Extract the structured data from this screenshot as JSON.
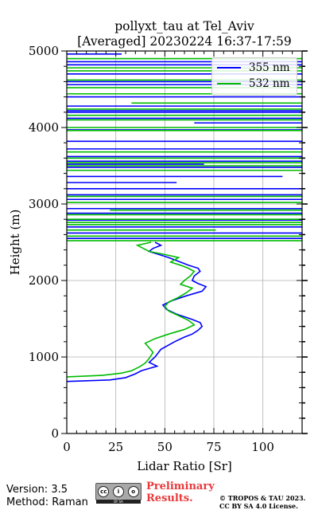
{
  "header": {
    "title_line1": "pollyxt_tau at Tel_Aviv",
    "title_line2": "[Averaged] 20230224 16:37-17:59"
  },
  "footer": {
    "version": "Version: 3.5",
    "method": "Method: Raman",
    "preliminary": "Preliminary\nResults.",
    "license": "© TROPOS & TAU 2023.\nCC BY SA 4.0 License.",
    "cc_badge": {
      "icon": "cc-by-sa-icon",
      "color": "#a9a9a9"
    }
  },
  "colors": {
    "s355": "#0000ff",
    "s532": "#00bb00",
    "prelim": "#e8393b"
  },
  "chart_data": {
    "type": "line",
    "title": "pollyxt_tau at Tel_Aviv\n[Averaged] 20230224 16:37-17:59",
    "xlabel": "Lidar Ratio [Sr]",
    "ylabel": "Height (m)",
    "xlim": [
      0,
      120
    ],
    "ylim": [
      0,
      5000
    ],
    "xticks": [
      0,
      25,
      50,
      75,
      100
    ],
    "yticks": [
      0,
      1000,
      2000,
      3000,
      4000,
      5000
    ],
    "grid": true,
    "legend_position": "top-right",
    "series": [
      {
        "name": "355 nm",
        "color": "#0000ff",
        "profile": [
          [
            680,
            0
          ],
          [
            700,
            22
          ],
          [
            730,
            30
          ],
          [
            780,
            35
          ],
          [
            820,
            38
          ],
          [
            850,
            42
          ],
          [
            880,
            46
          ],
          [
            930,
            42
          ],
          [
            1000,
            45
          ],
          [
            1100,
            48
          ],
          [
            1200,
            55
          ],
          [
            1260,
            60
          ],
          [
            1300,
            64
          ],
          [
            1350,
            67
          ],
          [
            1400,
            69
          ],
          [
            1450,
            68
          ],
          [
            1500,
            63
          ],
          [
            1560,
            56
          ],
          [
            1620,
            51
          ],
          [
            1680,
            49
          ],
          [
            1740,
            54
          ],
          [
            1800,
            61
          ],
          [
            1860,
            69
          ],
          [
            1920,
            71
          ],
          [
            1960,
            67
          ],
          [
            2000,
            64
          ],
          [
            2060,
            65
          ],
          [
            2120,
            68
          ],
          [
            2160,
            67
          ],
          [
            2200,
            62
          ],
          [
            2260,
            56
          ],
          [
            2300,
            52
          ],
          [
            2340,
            47
          ],
          [
            2380,
            42
          ],
          [
            2420,
            44
          ],
          [
            2460,
            48
          ],
          [
            2500,
            45
          ]
        ],
        "spikes": [
          [
            2550,
            0,
            120
          ],
          [
            2620,
            0,
            120
          ],
          [
            2700,
            0,
            120
          ],
          [
            2790,
            0,
            120
          ],
          [
            2880,
            0,
            120
          ],
          [
            2940,
            0,
            120
          ],
          [
            3060,
            0,
            120
          ],
          [
            3120,
            0,
            120
          ],
          [
            3200,
            0,
            120
          ],
          [
            3280,
            0,
            56
          ],
          [
            3360,
            0,
            110
          ],
          [
            3480,
            0,
            120
          ],
          [
            3520,
            0,
            70
          ],
          [
            3560,
            0,
            120
          ],
          [
            3620,
            0,
            120
          ],
          [
            3720,
            0,
            120
          ],
          [
            3820,
            0,
            120
          ],
          [
            3970,
            0,
            120
          ],
          [
            4060,
            65,
            120
          ],
          [
            4120,
            0,
            120
          ],
          [
            4200,
            0,
            120
          ],
          [
            4220,
            0,
            120
          ],
          [
            4280,
            0,
            120
          ],
          [
            4400,
            0,
            120
          ],
          [
            4560,
            0,
            120
          ],
          [
            4600,
            0,
            120
          ],
          [
            4700,
            0,
            120
          ],
          [
            4820,
            0,
            120
          ],
          [
            4860,
            0,
            120
          ],
          [
            4960,
            0,
            28
          ]
        ]
      },
      {
        "name": "532 nm",
        "color": "#00bb00",
        "profile": [
          [
            740,
            0
          ],
          [
            760,
            18
          ],
          [
            790,
            28
          ],
          [
            820,
            33
          ],
          [
            870,
            37
          ],
          [
            920,
            40
          ],
          [
            980,
            42
          ],
          [
            1060,
            44
          ],
          [
            1120,
            42
          ],
          [
            1180,
            40
          ],
          [
            1240,
            45
          ],
          [
            1300,
            52
          ],
          [
            1360,
            60
          ],
          [
            1420,
            65
          ],
          [
            1480,
            62
          ],
          [
            1540,
            57
          ],
          [
            1600,
            52
          ],
          [
            1660,
            50
          ],
          [
            1720,
            52
          ],
          [
            1780,
            57
          ],
          [
            1840,
            61
          ],
          [
            1900,
            64
          ],
          [
            1950,
            58
          ],
          [
            2000,
            60
          ],
          [
            2060,
            63
          ],
          [
            2120,
            65
          ],
          [
            2160,
            62
          ],
          [
            2200,
            58
          ],
          [
            2240,
            53
          ],
          [
            2300,
            57
          ],
          [
            2340,
            50
          ],
          [
            2380,
            42
          ],
          [
            2420,
            39
          ],
          [
            2460,
            36
          ],
          [
            2500,
            43
          ]
        ],
        "spikes": [
          [
            2520,
            0,
            120
          ],
          [
            2580,
            0,
            120
          ],
          [
            2660,
            0,
            76
          ],
          [
            2730,
            0,
            120
          ],
          [
            2760,
            0,
            120
          ],
          [
            2800,
            0,
            120
          ],
          [
            2860,
            0,
            120
          ],
          [
            2920,
            22,
            120
          ],
          [
            3020,
            0,
            120
          ],
          [
            3100,
            0,
            120
          ],
          [
            3440,
            0,
            120
          ],
          [
            3500,
            0,
            120
          ],
          [
            3540,
            0,
            120
          ],
          [
            3600,
            0,
            120
          ],
          [
            3680,
            0,
            120
          ],
          [
            3960,
            0,
            120
          ],
          [
            4000,
            0,
            120
          ],
          [
            4100,
            0,
            120
          ],
          [
            4160,
            0,
            120
          ],
          [
            4240,
            0,
            120
          ],
          [
            4320,
            33,
            120
          ],
          [
            4440,
            0,
            120
          ],
          [
            4520,
            0,
            120
          ],
          [
            4620,
            0,
            120
          ],
          [
            4740,
            0,
            120
          ],
          [
            4780,
            0,
            120
          ],
          [
            4900,
            0,
            120
          ]
        ]
      }
    ]
  }
}
